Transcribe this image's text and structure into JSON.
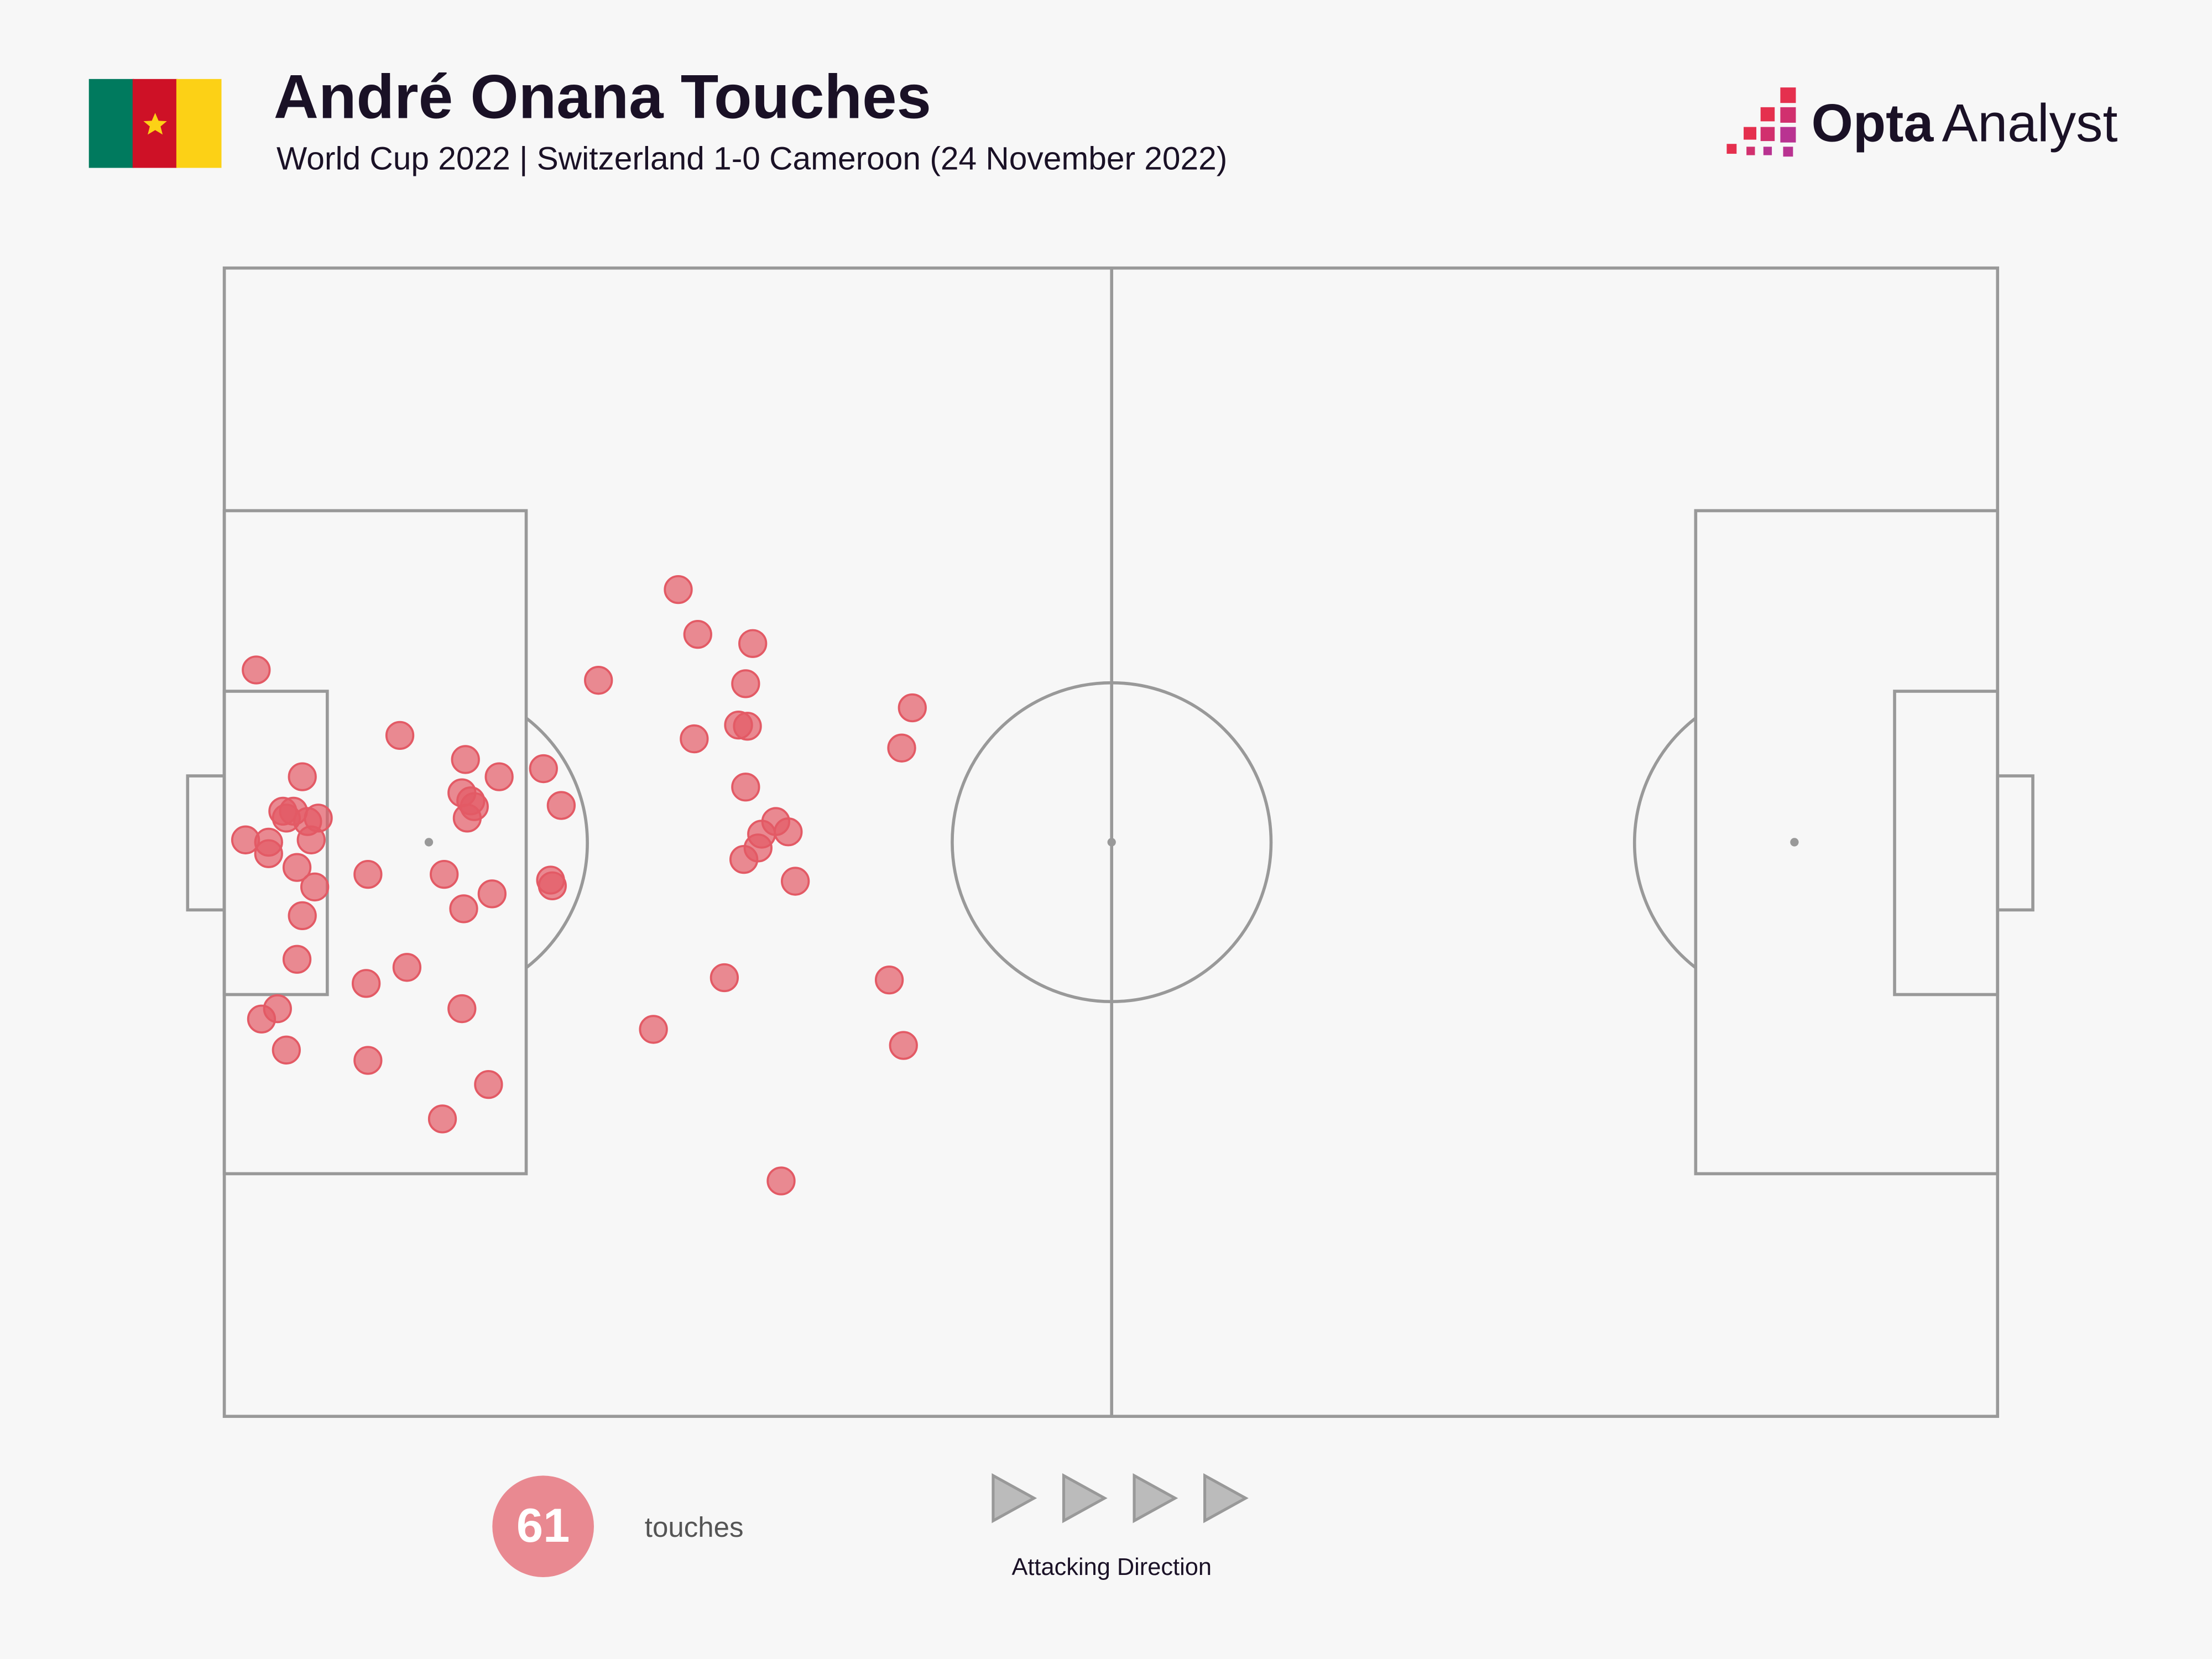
{
  "chart_data": {
    "type": "scatter",
    "title": "André Onana Touches",
    "subtitle": "World Cup 2022 | Switzerland 1-0 Cameroon (24 November 2022)",
    "logo": {
      "bold": "Opta",
      "light": "Analyst"
    },
    "total": 61,
    "direction_label": "Attacking Direction",
    "xlim": [
      0,
      100
    ],
    "ylim": [
      0,
      100
    ],
    "series": [
      {
        "name": "touches",
        "color": "#e35a65",
        "x": [
          1.8,
          9.9,
          4.4,
          3.3,
          3.9,
          3.5,
          4.7,
          5.3,
          1.2,
          2.5,
          2.5,
          4.9,
          4.1,
          5.1,
          4.4,
          4.1,
          3.0,
          2.1,
          3.5,
          8.1,
          8.0,
          10.3,
          8.1,
          12.3,
          14.9,
          13.4,
          12.4,
          13.5,
          15.1,
          13.6,
          13.4,
          13.9,
          13.7,
          14.1,
          15.5,
          18.0,
          19.0,
          18.4,
          18.5,
          21.1,
          25.6,
          26.7,
          29.8,
          29.4,
          29.0,
          29.5,
          26.5,
          29.4,
          31.1,
          31.8,
          30.3,
          30.1,
          29.3,
          32.2,
          28.2,
          24.2,
          31.4,
          38.8,
          38.2,
          37.5,
          38.3
        ],
        "values": [
          65.0,
          59.3,
          55.7,
          52.7,
          52.7,
          52.1,
          51.8,
          52.1,
          50.2,
          50.0,
          49.0,
          50.2,
          47.8,
          46.1,
          43.6,
          39.8,
          35.5,
          34.6,
          31.9,
          47.2,
          37.7,
          39.1,
          31.0,
          25.9,
          28.9,
          35.5,
          47.2,
          44.2,
          45.5,
          57.2,
          54.3,
          53.6,
          52.1,
          53.1,
          55.7,
          56.4,
          53.2,
          46.7,
          46.2,
          64.1,
          72.0,
          68.1,
          67.3,
          63.8,
          60.2,
          60.1,
          59.0,
          54.8,
          51.8,
          50.9,
          50.7,
          49.5,
          48.5,
          46.6,
          38.2,
          33.7,
          20.5,
          61.7,
          58.2,
          38.0,
          32.3
        ]
      }
    ]
  }
}
